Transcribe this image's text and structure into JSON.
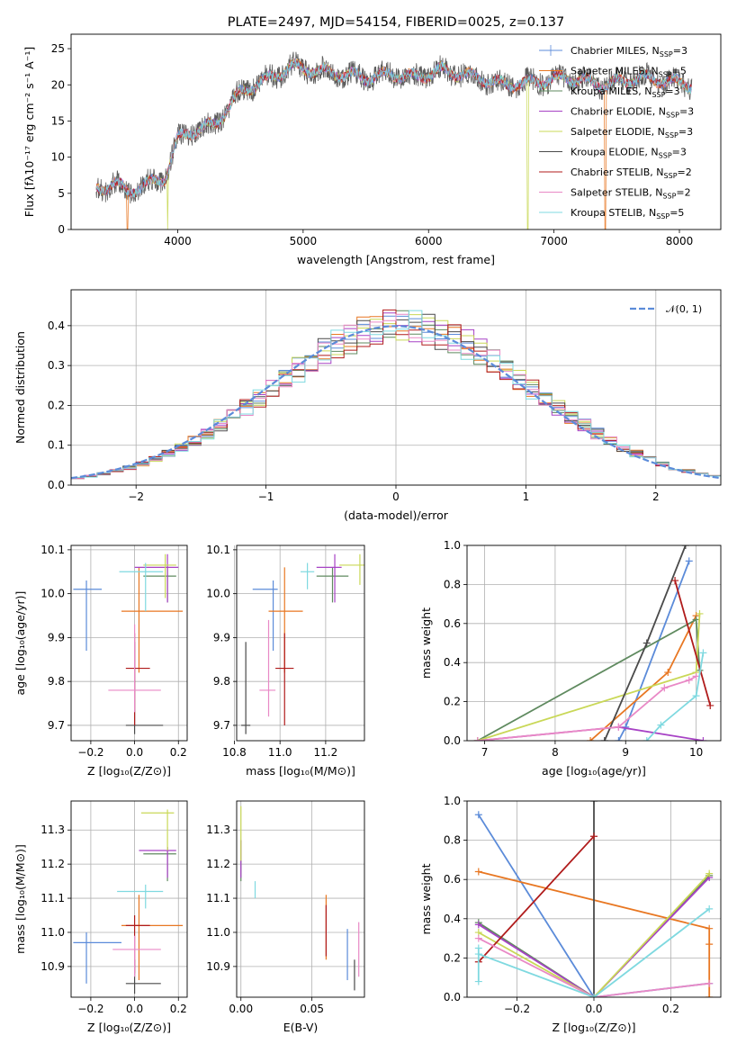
{
  "palette": [
    "#5b8bd9",
    "#e87722",
    "#5f8a5f",
    "#a742c5",
    "#c9d857",
    "#4a4a4a",
    "#b01b1b",
    "#e989c6",
    "#7fd9e0"
  ],
  "chart_data": [
    {
      "type": "line",
      "name": "spectrum",
      "title": "PLATE=2497, MJD=54154, FIBERID=0025, z=0.137",
      "xlabel": "wavelength [Angstrom, rest frame]",
      "ylabel": "Flux [fλ10⁻¹⁷ erg cm⁻² s⁻¹ A⁻¹]",
      "xlim": [
        3150,
        8330
      ],
      "ylim": [
        0,
        27
      ],
      "xticks": [
        4000,
        5000,
        6000,
        7000,
        8000
      ],
      "yticks": [
        0,
        5,
        10,
        15,
        20,
        25
      ],
      "continuum": [
        [
          3350,
          5.5
        ],
        [
          3500,
          6.4
        ],
        [
          3600,
          5.2
        ],
        [
          3750,
          6.2
        ],
        [
          3900,
          7.2
        ],
        [
          4000,
          12.5
        ],
        [
          4100,
          13.5
        ],
        [
          4300,
          14.5
        ],
        [
          4500,
          19
        ],
        [
          4750,
          21
        ],
        [
          4900,
          22.5
        ],
        [
          5100,
          22
        ],
        [
          5300,
          21.5
        ],
        [
          5500,
          21
        ],
        [
          5700,
          21.5
        ],
        [
          5900,
          21
        ],
        [
          6100,
          22
        ],
        [
          6400,
          21
        ],
        [
          6600,
          20
        ],
        [
          6900,
          20.5
        ],
        [
          7100,
          21
        ],
        [
          7400,
          20
        ],
        [
          7700,
          21
        ],
        [
          8100,
          20
        ]
      ],
      "series": [
        {
          "name": "Chabrier MILES, N",
          "sub": "SSP",
          "suffix": "=3"
        },
        {
          "name": "Salpeter MILES, N",
          "sub": "SSP",
          "suffix": "=5"
        },
        {
          "name": "Kroupa MILES, N",
          "sub": "SSP",
          "suffix": "=3"
        },
        {
          "name": "Chabrier ELODIE, N",
          "sub": "SSP",
          "suffix": "=3"
        },
        {
          "name": "Salpeter ELODIE, N",
          "sub": "SSP",
          "suffix": "=3"
        },
        {
          "name": "Kroupa ELODIE, N",
          "sub": "SSP",
          "suffix": "=3"
        },
        {
          "name": "Chabrier STELIB, N",
          "sub": "SSP",
          "suffix": "=2"
        },
        {
          "name": "Salpeter STELIB, N",
          "sub": "SSP",
          "suffix": "=2"
        },
        {
          "name": "Kroupa STELIB, N",
          "sub": "SSP",
          "suffix": "=5"
        }
      ],
      "drops": [
        {
          "x": 3600,
          "series": 1,
          "y": 0
        },
        {
          "x": 3920,
          "series": 4,
          "y": 0
        },
        {
          "x": 6790,
          "series": 4,
          "y": 0
        },
        {
          "x": 7410,
          "series": 1,
          "y": 0
        }
      ]
    },
    {
      "type": "histogram",
      "name": "residuals",
      "xlabel": "(data-model)/error",
      "ylabel": "Normed distribution",
      "xlim": [
        -2.5,
        2.5
      ],
      "ylim": [
        0,
        0.49
      ],
      "xticks": [
        -2,
        -1,
        0,
        1,
        2
      ],
      "yticks": [
        0.0,
        0.1,
        0.2,
        0.3,
        0.4
      ],
      "bin_width": 0.1,
      "legend": "𝒩(0, 1)",
      "legend_loc": "top-right"
    },
    {
      "type": "scatter",
      "name": "age-vs-Z",
      "xlabel": "Z [log₁₀(Z/Z⊙)]",
      "ylabel": "age  [log₁₀(age/yr)]",
      "xlim": [
        -0.29,
        0.24
      ],
      "ylim": [
        9.665,
        10.11
      ],
      "xticks": [
        -0.2,
        0.0,
        0.2
      ],
      "yticks": [
        9.7,
        9.8,
        9.9,
        10.0,
        10.1
      ],
      "points": [
        {
          "s": 0,
          "x": -0.22,
          "y": 10.01,
          "xl": -0.28,
          "xh": -0.15,
          "yl": 9.87,
          "yh": 10.03
        },
        {
          "s": 1,
          "x": 0.02,
          "y": 9.96,
          "xl": -0.06,
          "xh": 0.22,
          "yl": 9.82,
          "yh": 10.06
        },
        {
          "s": 2,
          "x": 0.15,
          "y": 10.04,
          "xl": 0.04,
          "xh": 0.19,
          "yl": 9.98,
          "yh": 10.06
        },
        {
          "s": 3,
          "x": 0.15,
          "y": 10.06,
          "xl": 0.0,
          "xh": 0.2,
          "yl": 9.98,
          "yh": 10.09
        },
        {
          "s": 4,
          "x": 0.14,
          "y": 10.065,
          "xl": 0.04,
          "xh": 0.19,
          "yl": 9.99,
          "yh": 10.09
        },
        {
          "s": 5,
          "x": 0.0,
          "y": 9.7,
          "xl": -0.04,
          "xh": 0.13,
          "yl": 9.68,
          "yh": 9.89
        },
        {
          "s": 6,
          "x": 0.0,
          "y": 9.83,
          "xl": -0.04,
          "xh": 0.07,
          "yl": 9.7,
          "yh": 9.91
        },
        {
          "s": 7,
          "x": 0.0,
          "y": 9.78,
          "xl": -0.12,
          "xh": 0.12,
          "yl": 9.73,
          "yh": 9.93
        },
        {
          "s": 8,
          "x": 0.05,
          "y": 10.05,
          "xl": -0.07,
          "xh": 0.13,
          "yl": 9.96,
          "yh": 10.07
        }
      ]
    },
    {
      "type": "scatter",
      "name": "age-vs-mass",
      "xlabel": "mass [log₁₀(M/M⊙)]",
      "ylabel": "",
      "xlim": [
        10.81,
        11.37
      ],
      "ylim": [
        9.665,
        10.11
      ],
      "xticks": [
        10.8,
        11.0,
        11.2
      ],
      "yticks": [
        9.7,
        9.8,
        9.9,
        10.0,
        10.1
      ],
      "points": [
        {
          "s": 0,
          "x": 10.97,
          "y": 10.01,
          "xl": 10.88,
          "xh": 10.99,
          "yl": 9.87,
          "yh": 10.03
        },
        {
          "s": 1,
          "x": 11.02,
          "y": 9.96,
          "xl": 10.95,
          "xh": 11.1,
          "yl": 9.82,
          "yh": 10.06
        },
        {
          "s": 2,
          "x": 11.23,
          "y": 10.04,
          "xl": 11.16,
          "xh": 11.3,
          "yl": 9.98,
          "yh": 10.06
        },
        {
          "s": 3,
          "x": 11.24,
          "y": 10.06,
          "xl": 11.16,
          "xh": 11.27,
          "yl": 9.98,
          "yh": 10.09
        },
        {
          "s": 4,
          "x": 11.35,
          "y": 10.065,
          "xl": 11.26,
          "xh": 11.38,
          "yl": 10.02,
          "yh": 10.09
        },
        {
          "s": 5,
          "x": 10.85,
          "y": 9.7,
          "xl": 10.83,
          "xh": 10.87,
          "yl": 9.68,
          "yh": 9.89
        },
        {
          "s": 6,
          "x": 11.02,
          "y": 9.83,
          "xl": 10.98,
          "xh": 11.06,
          "yl": 9.7,
          "yh": 9.91
        },
        {
          "s": 7,
          "x": 10.95,
          "y": 9.78,
          "xl": 10.91,
          "xh": 10.98,
          "yl": 9.72,
          "yh": 9.94
        },
        {
          "s": 8,
          "x": 11.12,
          "y": 10.05,
          "xl": 11.09,
          "xh": 11.15,
          "yl": 10.01,
          "yh": 10.07
        }
      ]
    },
    {
      "type": "line",
      "name": "weight-vs-age",
      "xlabel": "age  [log₁₀(age/yr)]",
      "ylabel": "mass weight",
      "xlim": [
        6.75,
        10.35
      ],
      "ylim": [
        0,
        1.0
      ],
      "xticks": [
        7,
        8,
        9,
        10
      ],
      "yticks": [
        0.0,
        0.2,
        0.4,
        0.6,
        0.8,
        1.0
      ],
      "series": [
        {
          "s": 0,
          "pts": [
            [
              8.9,
              0.0
            ],
            [
              9.0,
              0.07
            ],
            [
              9.9,
              0.92
            ]
          ]
        },
        {
          "s": 1,
          "pts": [
            [
              8.5,
              0.0
            ],
            [
              9.6,
              0.35
            ],
            [
              10.0,
              0.64
            ]
          ]
        },
        {
          "s": 2,
          "pts": [
            [
              6.9,
              0.0
            ],
            [
              10.0,
              0.62
            ],
            [
              10.05,
              0.36
            ]
          ]
        },
        {
          "s": 3,
          "pts": [
            [
              6.9,
              0.0
            ],
            [
              8.9,
              0.07
            ],
            [
              10.1,
              0.0
            ]
          ]
        },
        {
          "s": 4,
          "pts": [
            [
              6.9,
              0.0
            ],
            [
              10.0,
              0.35
            ],
            [
              10.05,
              0.65
            ]
          ]
        },
        {
          "s": 5,
          "pts": [
            [
              8.7,
              0.0
            ],
            [
              9.3,
              0.5
            ],
            [
              9.85,
              1.0
            ]
          ]
        },
        {
          "s": 6,
          "pts": [
            [
              9.7,
              0.82
            ],
            [
              10.2,
              0.18
            ]
          ]
        },
        {
          "s": 7,
          "pts": [
            [
              6.9,
              0.0
            ],
            [
              8.9,
              0.07
            ],
            [
              9.55,
              0.27
            ],
            [
              9.9,
              0.31
            ],
            [
              10.0,
              0.33
            ]
          ]
        },
        {
          "s": 8,
          "pts": [
            [
              9.3,
              0.0
            ],
            [
              9.5,
              0.08
            ],
            [
              10.0,
              0.23
            ],
            [
              10.1,
              0.45
            ]
          ]
        }
      ]
    },
    {
      "type": "scatter",
      "name": "mass-vs-Z",
      "xlabel": "Z [log₁₀(Z/Z⊙)]",
      "ylabel": "mass [log₁₀(M/M⊙)]",
      "xlim": [
        -0.29,
        0.24
      ],
      "ylim": [
        10.81,
        11.385
      ],
      "xticks": [
        -0.2,
        0.0,
        0.2
      ],
      "yticks": [
        10.9,
        11.0,
        11.1,
        11.2,
        11.3
      ],
      "points": [
        {
          "s": 0,
          "x": -0.22,
          "y": 10.97,
          "xl": -0.28,
          "xh": -0.06,
          "yl": 10.85,
          "yh": 11.0
        },
        {
          "s": 1,
          "x": 0.02,
          "y": 11.02,
          "xl": -0.06,
          "xh": 0.22,
          "yl": 10.86,
          "yh": 11.11
        },
        {
          "s": 2,
          "x": 0.15,
          "y": 11.23,
          "xl": 0.04,
          "xh": 0.19,
          "yl": 11.15,
          "yh": 11.25
        },
        {
          "s": 3,
          "x": 0.15,
          "y": 11.24,
          "xl": 0.02,
          "xh": 0.19,
          "yl": 11.16,
          "yh": 11.25
        },
        {
          "s": 4,
          "x": 0.15,
          "y": 11.35,
          "xl": 0.03,
          "xh": 0.18,
          "yl": 11.24,
          "yh": 11.36
        },
        {
          "s": 5,
          "x": 0.0,
          "y": 10.85,
          "xl": -0.04,
          "xh": 0.12,
          "yl": 10.82,
          "yh": 10.92
        },
        {
          "s": 6,
          "x": 0.0,
          "y": 11.02,
          "xl": -0.04,
          "xh": 0.07,
          "yl": 10.88,
          "yh": 11.05
        },
        {
          "s": 7,
          "x": 0.0,
          "y": 10.95,
          "xl": -0.1,
          "xh": 0.12,
          "yl": 10.87,
          "yh": 10.99
        },
        {
          "s": 8,
          "x": 0.05,
          "y": 11.12,
          "xl": -0.08,
          "xh": 0.13,
          "yl": 11.07,
          "yh": 11.14
        }
      ]
    },
    {
      "type": "scatter",
      "name": "mass-vs-EBV",
      "xlabel": "E(B-V)",
      "ylabel": "",
      "xlim": [
        -0.003,
        0.087
      ],
      "ylim": [
        10.81,
        11.385
      ],
      "xticks": [
        0.0,
        0.05
      ],
      "yticks": [
        10.9,
        11.0,
        11.1,
        11.2,
        11.3
      ],
      "points": [
        {
          "s": 0,
          "x": 0.075,
          "y": 10.97,
          "yl": 10.86,
          "yh": 11.01
        },
        {
          "s": 1,
          "x": 0.06,
          "y": 11.02,
          "yl": 10.92,
          "yh": 11.11
        },
        {
          "s": 2,
          "x": 0.0,
          "y": 11.23,
          "yl": 11.15,
          "yh": 11.27
        },
        {
          "s": 3,
          "x": 0.0,
          "y": 11.24,
          "yl": 11.16,
          "yh": 11.27
        },
        {
          "s": 4,
          "x": 0.0,
          "y": 11.35,
          "yl": 11.21,
          "yh": 11.37
        },
        {
          "s": 5,
          "x": 0.08,
          "y": 10.85,
          "yl": 10.83,
          "yh": 10.92
        },
        {
          "s": 6,
          "x": 0.06,
          "y": 11.02,
          "yl": 10.93,
          "yh": 11.08
        },
        {
          "s": 7,
          "x": 0.083,
          "y": 10.95,
          "yl": 10.87,
          "yh": 11.03
        },
        {
          "s": 8,
          "x": 0.01,
          "y": 11.12,
          "yl": 11.1,
          "yh": 11.15
        }
      ]
    },
    {
      "type": "line",
      "name": "weight-vs-Z",
      "xlabel": "Z [log₁₀(Z/Z⊙)]",
      "ylabel": "mass weight",
      "xlim": [
        -0.33,
        0.33
      ],
      "ylim": [
        0,
        1.0
      ],
      "xticks": [
        -0.2,
        0.0,
        0.2
      ],
      "yticks": [
        0.0,
        0.2,
        0.4,
        0.6,
        0.8,
        1.0
      ],
      "series": [
        {
          "s": 0,
          "pts": [
            [
              -0.3,
              0.93
            ],
            [
              0.0,
              0.0
            ],
            [
              0.3,
              0.07
            ]
          ]
        },
        {
          "s": 1,
          "pts": [
            [
              -0.3,
              0.64
            ],
            [
              0.3,
              0.35
            ],
            [
              0.3,
              0.27
            ],
            [
              0.3,
              0.0
            ]
          ]
        },
        {
          "s": 2,
          "pts": [
            [
              -0.3,
              0.38
            ],
            [
              0.0,
              0.0
            ],
            [
              0.3,
              0.62
            ]
          ]
        },
        {
          "s": 3,
          "pts": [
            [
              -0.3,
              0.37
            ],
            [
              0.0,
              0.0
            ],
            [
              0.3,
              0.61
            ]
          ]
        },
        {
          "s": 4,
          "pts": [
            [
              -0.3,
              0.33
            ],
            [
              0.0,
              0.0
            ],
            [
              0.3,
              0.63
            ]
          ]
        },
        {
          "s": 5,
          "pts": [
            [
              0.0,
              0.0
            ],
            [
              0.0,
              1.0
            ]
          ]
        },
        {
          "s": 6,
          "pts": [
            [
              -0.3,
              0.18
            ],
            [
              0.0,
              0.82
            ]
          ]
        },
        {
          "s": 7,
          "pts": [
            [
              -0.3,
              0.3
            ],
            [
              0.0,
              0.0
            ],
            [
              0.3,
              0.07
            ]
          ]
        },
        {
          "s": 8,
          "pts": [
            [
              -0.3,
              0.25
            ],
            [
              -0.3,
              0.08
            ],
            [
              -0.3,
              0.22
            ],
            [
              0.0,
              0.0
            ],
            [
              0.3,
              0.45
            ]
          ]
        }
      ]
    }
  ]
}
